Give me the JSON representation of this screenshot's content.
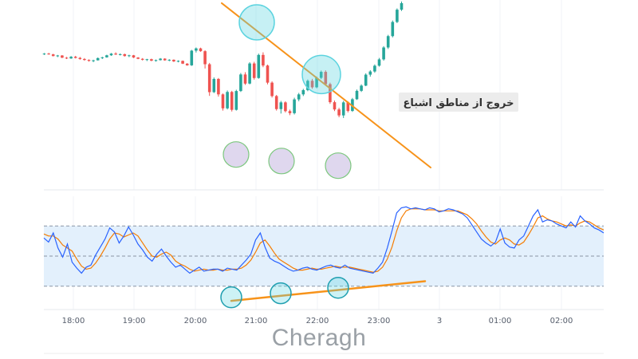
{
  "chart_data": [
    {
      "type": "candlestick",
      "colors": {
        "up": "#26a69a",
        "down": "#ef5350"
      },
      "x_tick_labels": [
        "18:00",
        "19:00",
        "20:00",
        "21:00",
        "22:00",
        "23:00",
        "3",
        "01:00",
        "02:00"
      ],
      "annotation": {
        "text": "خروج از مناطق اشباع"
      },
      "trendline": {
        "color": "#f7931a"
      },
      "highlight_circles": {
        "top_color": "#5bd3df",
        "bottom_color": "#b7a6d9"
      },
      "ohlc": [
        [
          73.0,
          73.5,
          72.5,
          73.2
        ],
        [
          73.2,
          73.6,
          72.6,
          72.8
        ],
        [
          72.8,
          73.1,
          71.7,
          71.9
        ],
        [
          71.9,
          72.5,
          71.3,
          72.2
        ],
        [
          72.2,
          72.4,
          70.8,
          71.0
        ],
        [
          71.0,
          71.4,
          70.3,
          70.6
        ],
        [
          70.6,
          71.9,
          70.4,
          71.5
        ],
        [
          71.5,
          72.0,
          70.6,
          70.9
        ],
        [
          70.9,
          71.4,
          69.9,
          70.3
        ],
        [
          70.3,
          70.8,
          69.4,
          69.8
        ],
        [
          69.8,
          70.1,
          68.9,
          69.3
        ],
        [
          69.3,
          69.9,
          68.6,
          69.6
        ],
        [
          69.6,
          71.1,
          69.5,
          70.8
        ],
        [
          70.8,
          71.5,
          70.3,
          71.2
        ],
        [
          71.2,
          72.6,
          71.0,
          72.3
        ],
        [
          72.3,
          73.5,
          72.0,
          73.2
        ],
        [
          73.2,
          73.9,
          72.5,
          72.7
        ],
        [
          72.7,
          73.3,
          72.2,
          72.9
        ],
        [
          72.9,
          73.2,
          71.6,
          71.9
        ],
        [
          71.9,
          72.6,
          71.3,
          72.3
        ],
        [
          72.3,
          72.5,
          70.8,
          71.1
        ],
        [
          71.1,
          71.3,
          70.2,
          70.4
        ],
        [
          70.4,
          70.8,
          69.5,
          69.9
        ],
        [
          69.9,
          70.4,
          69.2,
          70.2
        ],
        [
          70.2,
          70.5,
          69.1,
          69.4
        ],
        [
          69.4,
          70.0,
          68.9,
          69.7
        ],
        [
          69.7,
          70.8,
          69.5,
          70.5
        ],
        [
          70.5,
          70.7,
          69.4,
          69.6
        ],
        [
          69.6,
          70.2,
          69.1,
          69.9
        ],
        [
          69.9,
          70.1,
          68.7,
          69.0
        ],
        [
          69.0,
          69.6,
          68.5,
          69.3
        ],
        [
          69.3,
          69.5,
          67.6,
          67.8
        ],
        [
          67.8,
          68.1,
          66.7,
          66.9
        ],
        [
          66.9,
          75.2,
          66.6,
          74.8
        ],
        [
          74.8,
          76.5,
          73.8,
          76.0
        ],
        [
          76.0,
          76.4,
          74.2,
          74.5
        ],
        [
          74.5,
          75.0,
          65.2,
          67.5
        ],
        [
          67.5,
          68.2,
          50.5,
          52.5
        ],
        [
          52.5,
          60.4,
          52.0,
          59.6
        ],
        [
          59.6,
          60.1,
          50.1,
          51.3
        ],
        [
          51.3,
          51.8,
          42.6,
          43.8
        ],
        [
          43.8,
          53.4,
          43.2,
          52.6
        ],
        [
          52.6,
          53.2,
          42.1,
          43.0
        ],
        [
          43.0,
          53.8,
          42.6,
          53.1
        ],
        [
          53.1,
          62.8,
          52.6,
          62.0
        ],
        [
          62.0,
          63.2,
          56.4,
          57.1
        ],
        [
          57.1,
          68.6,
          56.7,
          67.9
        ],
        [
          67.9,
          68.8,
          59.2,
          60.1
        ],
        [
          60.1,
          73.2,
          59.7,
          72.5
        ],
        [
          72.5,
          73.9,
          65.9,
          66.8
        ],
        [
          66.8,
          67.3,
          56.7,
          57.6
        ],
        [
          57.6,
          58.3,
          49.6,
          50.4
        ],
        [
          50.4,
          51.0,
          42.6,
          43.4
        ],
        [
          43.4,
          47.8,
          41.0,
          47.0
        ],
        [
          47.0,
          47.6,
          41.6,
          42.3
        ],
        [
          42.3,
          43.1,
          40.1,
          41.2
        ],
        [
          41.2,
          49.5,
          40.5,
          48.6
        ],
        [
          48.6,
          52.1,
          47.6,
          51.3
        ],
        [
          51.3,
          54.3,
          50.4,
          53.6
        ],
        [
          53.6,
          59.3,
          53.0,
          58.6
        ],
        [
          58.6,
          59.6,
          54.3,
          55.1
        ],
        [
          55.1,
          60.9,
          54.6,
          60.2
        ],
        [
          60.2,
          64.1,
          59.5,
          63.4
        ],
        [
          63.4,
          64.2,
          56.0,
          56.8
        ],
        [
          56.8,
          57.6,
          46.2,
          47.1
        ],
        [
          47.1,
          48.0,
          42.3,
          43.2
        ],
        [
          43.2,
          44.1,
          39.0,
          40.0
        ],
        [
          40.0,
          47.8,
          38.6,
          47.0
        ],
        [
          47.0,
          47.6,
          41.6,
          42.4
        ],
        [
          42.4,
          49.4,
          41.9,
          48.7
        ],
        [
          48.7,
          53.9,
          48.3,
          53.2
        ],
        [
          53.2,
          56.7,
          52.6,
          56.0
        ],
        [
          56.0,
          62.6,
          55.7,
          61.9
        ],
        [
          61.9,
          64.3,
          60.8,
          63.6
        ],
        [
          63.6,
          67.4,
          62.9,
          66.7
        ],
        [
          66.7,
          70.9,
          66.2,
          70.1
        ],
        [
          70.1,
          77.2,
          69.4,
          76.5
        ],
        [
          76.5,
          83.3,
          75.7,
          82.6
        ],
        [
          82.6,
          91.0,
          81.9,
          90.2
        ],
        [
          90.2,
          97.5,
          89.6,
          96.8
        ],
        [
          96.8,
          101.2,
          96.1,
          100.3
        ]
      ]
    },
    {
      "type": "line",
      "series": [
        {
          "values": [
            68,
            64,
            73,
            58,
            49,
            62,
            44,
            38,
            33,
            39,
            41,
            51,
            59,
            67,
            78,
            74,
            63,
            70,
            79,
            71,
            62,
            56,
            49,
            45,
            52,
            57,
            50,
            44,
            39,
            41,
            37,
            33,
            36,
            39,
            35,
            36,
            37,
            37,
            35,
            38,
            37,
            36,
            41,
            46,
            52,
            66,
            73,
            59,
            48,
            45,
            43,
            40,
            37,
            35,
            36,
            38,
            39,
            37,
            36,
            38,
            40,
            41,
            39,
            38,
            41,
            38,
            37,
            36,
            35,
            34,
            33,
            38,
            44,
            58,
            75,
            93,
            98,
            99,
            97,
            98,
            97,
            96,
            98,
            97,
            94,
            95,
            97,
            96,
            94,
            92,
            88,
            81,
            74,
            67,
            63,
            60,
            64,
            77,
            63,
            59,
            58,
            66,
            70,
            80,
            90,
            96,
            84,
            86,
            85,
            82,
            80,
            78,
            84,
            79,
            90,
            85,
            82,
            78,
            76,
            73
          ]
        },
        {
          "values": [
            72,
            70,
            70,
            67,
            61,
            58,
            55,
            47,
            40,
            37,
            38,
            43,
            50,
            58,
            67,
            73,
            72,
            69,
            71,
            73,
            70,
            63,
            56,
            50,
            49,
            52,
            54,
            51,
            45,
            42,
            40,
            37,
            35,
            36,
            37,
            36,
            36,
            37,
            36,
            36,
            37,
            37,
            38,
            41,
            46,
            54,
            63,
            66,
            60,
            53,
            47,
            44,
            41,
            38,
            36,
            36,
            37,
            38,
            37,
            37,
            38,
            39,
            40,
            39,
            39,
            39,
            38,
            37,
            36,
            35,
            34,
            35,
            39,
            47,
            59,
            75,
            88,
            95,
            97,
            97,
            97,
            96,
            96,
            96,
            95,
            95,
            95,
            95,
            95,
            93,
            91,
            87,
            82,
            75,
            69,
            64,
            62,
            66,
            68,
            66,
            62,
            61,
            64,
            71,
            79,
            88,
            90,
            87,
            85,
            84,
            82,
            80,
            81,
            80,
            83,
            85,
            84,
            81,
            78,
            76
          ]
        }
      ],
      "overbought": 80,
      "oversold": 20,
      "ylim": [
        0,
        100
      ],
      "colors": {
        "fast": "#2962ff",
        "slow": "#f57c00",
        "band": "#e3f0fc",
        "level": "#8a95a5"
      }
    }
  ],
  "watermark": {
    "text": "Cheragh"
  }
}
